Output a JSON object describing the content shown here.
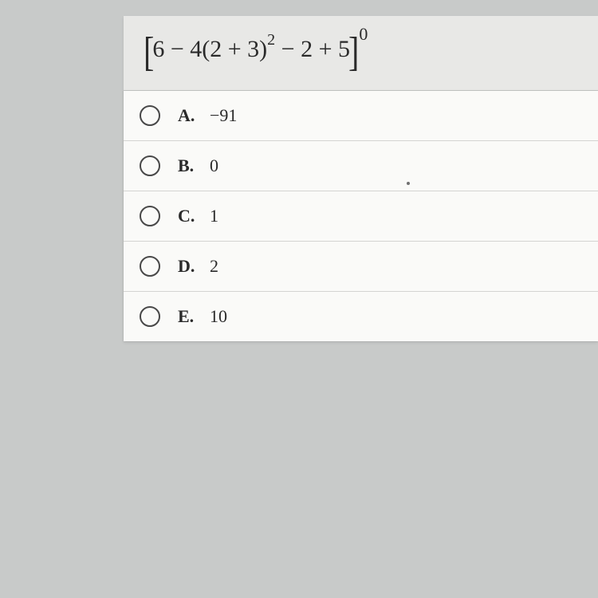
{
  "question": {
    "expression_parts": {
      "bracket_left": "[",
      "part1": "6 − 4(2 + 3)",
      "exp1": "2",
      "part2": " − 2 + 5",
      "bracket_right": "]",
      "exp_outer": "0"
    }
  },
  "options": [
    {
      "letter": "A.",
      "value": "−91"
    },
    {
      "letter": "B.",
      "value": "0"
    },
    {
      "letter": "C.",
      "value": "1"
    },
    {
      "letter": "D.",
      "value": "2"
    },
    {
      "letter": "E.",
      "value": "10"
    }
  ],
  "styling": {
    "page_background": "#c8cac9",
    "question_background": "#e8e8e6",
    "options_background": "#fafaf8",
    "border_color": "#d4d4d2",
    "text_color": "#2a2a2a",
    "radio_border": "#484848",
    "question_fontsize": 30,
    "option_fontsize": 22,
    "radio_size": 26
  }
}
